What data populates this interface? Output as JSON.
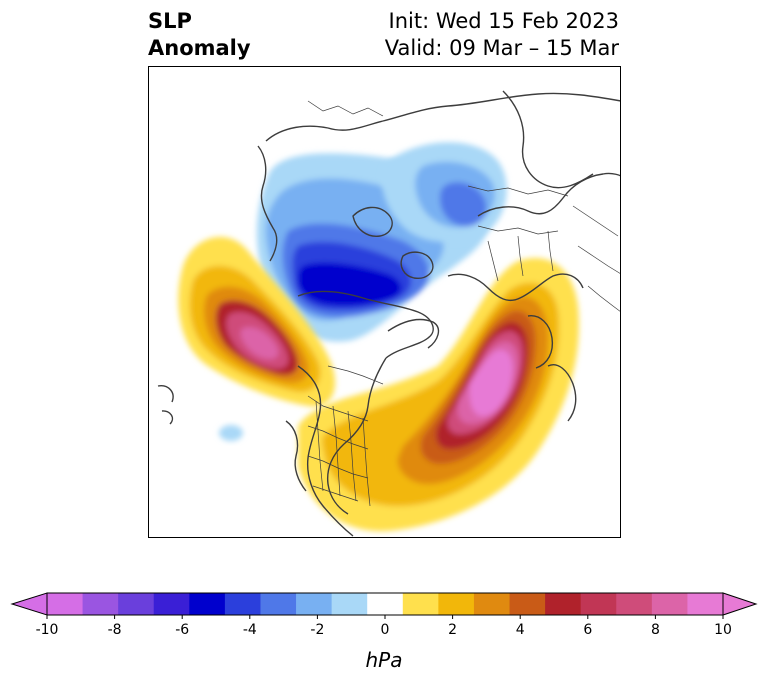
{
  "header": {
    "title_line1": "SLP",
    "title_line2": "Anomaly",
    "init_text": "Init: Wed 15 Feb 2023",
    "valid_text": "Valid: 09 Mar – 15 Mar"
  },
  "map": {
    "field": "SLP anomaly",
    "features": [
      {
        "name": "negative-anomaly-arctic",
        "sign": "negative",
        "peak_hpa": -6,
        "region": "Arctic Ocean / northern Siberia"
      },
      {
        "name": "negative-anomaly-siberia",
        "sign": "negative",
        "peak_hpa": -5,
        "region": "northern Eurasia"
      },
      {
        "name": "positive-anomaly-northeast-pacific",
        "sign": "positive",
        "peak_hpa": 9,
        "region": "Gulf of Alaska"
      },
      {
        "name": "positive-anomaly-north-atlantic",
        "sign": "positive",
        "peak_hpa": 10,
        "region": "North Atlantic / Greenland"
      },
      {
        "name": "negative-anomaly-pacific-small",
        "sign": "negative",
        "peak_hpa": -1,
        "region": "central North Pacific"
      }
    ]
  },
  "colorbar": {
    "unit": "hPa",
    "levels": [
      -10,
      -9,
      -8,
      -7,
      -6,
      -5,
      -4,
      -3,
      -2,
      -1,
      1,
      2,
      3,
      4,
      5,
      6,
      7,
      8,
      9,
      10
    ],
    "tick_labels": [
      "-10",
      "-8",
      "-6",
      "-4",
      "-2",
      "0",
      "2",
      "4",
      "6",
      "8",
      "10"
    ],
    "colors": [
      "#d56ee6",
      "#9a55e1",
      "#6a3fdc",
      "#3a1fd6",
      "#0000cd",
      "#2b3fdc",
      "#4f78e8",
      "#78b0f2",
      "#a9d8f7",
      "#ffffff",
      "#ffe04d",
      "#f2b70a",
      "#e08a10",
      "#c95b17",
      "#b0222b",
      "#c13655",
      "#cf4c7a",
      "#dc64a8",
      "#e77ad5"
    ]
  }
}
